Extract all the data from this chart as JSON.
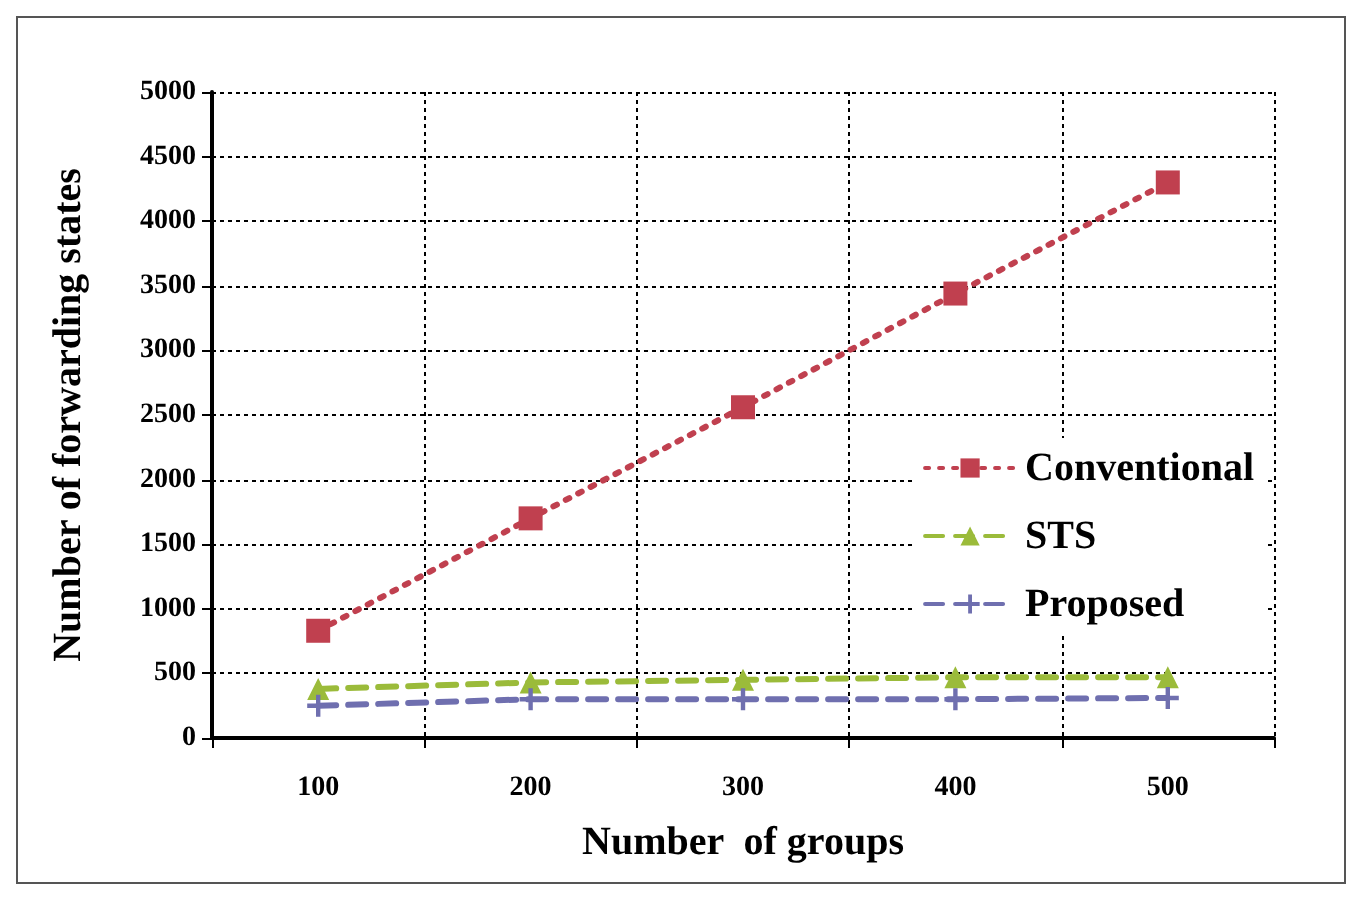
{
  "chart_data": {
    "type": "line",
    "xlabel": "Number  of groups",
    "ylabel": "Number of forwarding states",
    "categories": [
      "100",
      "200",
      "300",
      "400",
      "500"
    ],
    "series": [
      {
        "name": "Conventional",
        "color": "#c0404f",
        "values": [
          830,
          1700,
          2560,
          3440,
          4300
        ],
        "marker": "square",
        "line_style": "dotted"
      },
      {
        "name": "STS",
        "color": "#9bbb3a",
        "values": [
          380,
          430,
          450,
          470,
          470
        ],
        "marker": "triangle",
        "line_style": "dashed"
      },
      {
        "name": "Proposed",
        "color": "#6f6faf",
        "values": [
          250,
          300,
          300,
          300,
          310
        ],
        "marker": "cross",
        "line_style": "dashed"
      }
    ],
    "ylim": [
      0,
      5000
    ],
    "yticks": [
      0,
      500,
      1000,
      1500,
      2000,
      2500,
      3000,
      3500,
      4000,
      4500,
      5000
    ],
    "grid": true,
    "legend": "right"
  }
}
